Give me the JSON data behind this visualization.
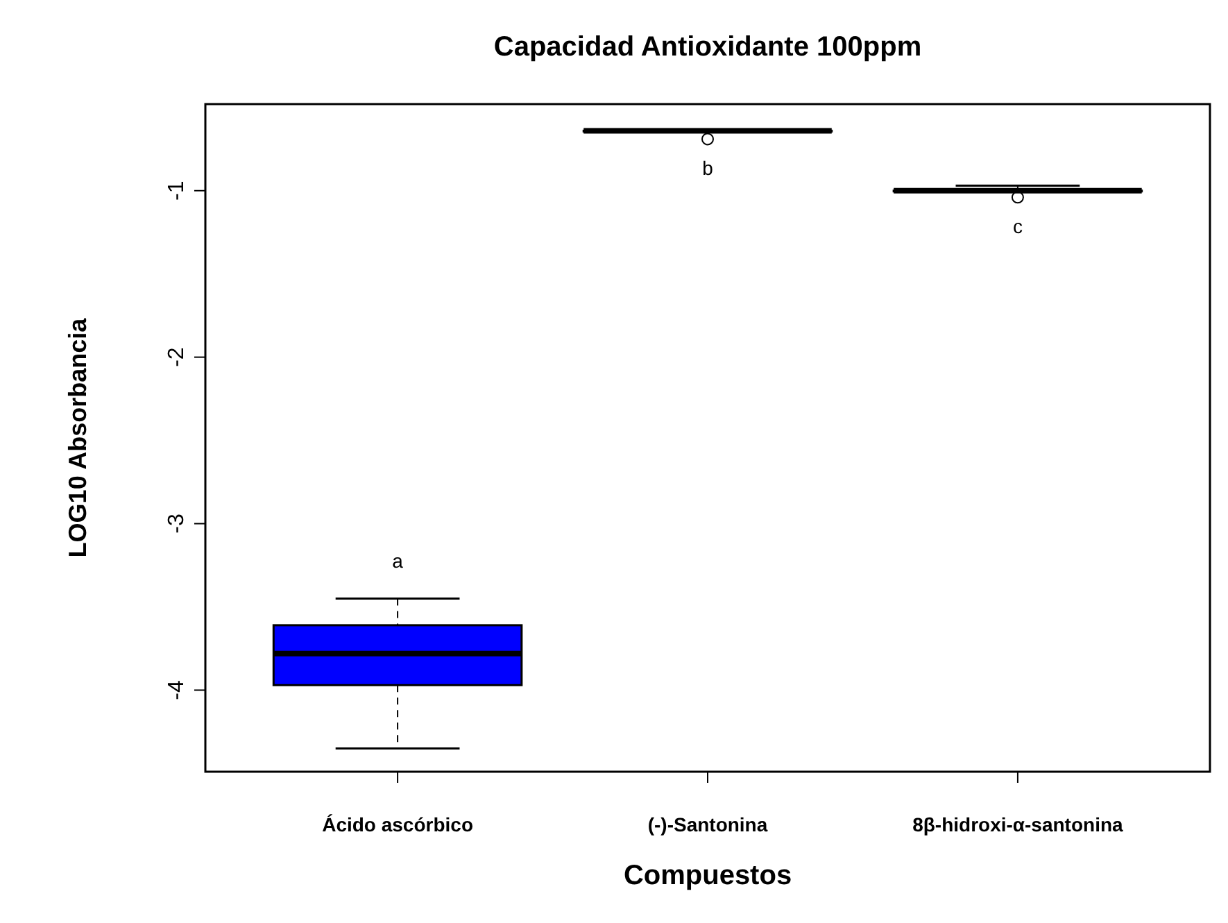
{
  "chart_data": {
    "type": "box",
    "title": "Capacidad Antioxidante 100ppm",
    "xlabel": "Compuestos",
    "ylabel": "LOG10 Absorbancia",
    "categories": [
      "Ácido ascórbico",
      "(-)-Santonina",
      "8β-hidroxi-α-santonina"
    ],
    "boxes": [
      {
        "low": -4.35,
        "q1": -3.97,
        "median": -3.78,
        "q3": -3.61,
        "high": -3.45
      },
      {
        "low": -0.64,
        "q1": -0.64,
        "median": -0.64,
        "q3": -0.64,
        "high": -0.64,
        "outliers": [
          -0.69
        ]
      },
      {
        "low": -1.0,
        "q1": -1.0,
        "median": -1.0,
        "q3": -1.0,
        "high": -0.97,
        "outliers": [
          -1.04
        ]
      }
    ],
    "colors": [
      "#0000ff",
      "#ffffff",
      "#ffffff"
    ],
    "ylim": [
      -4.49,
      -0.48
    ],
    "yticks": [
      -1,
      -2,
      -3,
      -4
    ],
    "grid": false,
    "annotations": [
      "a",
      "b",
      "c"
    ]
  }
}
